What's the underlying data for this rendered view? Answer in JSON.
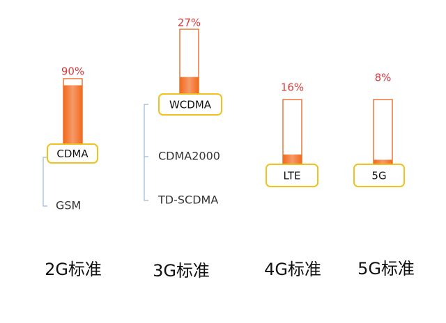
{
  "columns": [
    {
      "standard": "2G标准",
      "main": "CDMA",
      "share": 90,
      "share_label": "90%",
      "others": [
        "GSM"
      ]
    },
    {
      "standard": "3G标准",
      "main": "WCDMA",
      "share": 27,
      "share_label": "27%",
      "others": [
        "CDMA2000",
        "TD-SCDMA"
      ]
    },
    {
      "standard": "4G标准",
      "main": "LTE",
      "share": 16,
      "share_label": "16%",
      "others": []
    },
    {
      "standard": "5G标准",
      "main": "5G",
      "share": 8,
      "share_label": "8%",
      "others": []
    }
  ]
}
